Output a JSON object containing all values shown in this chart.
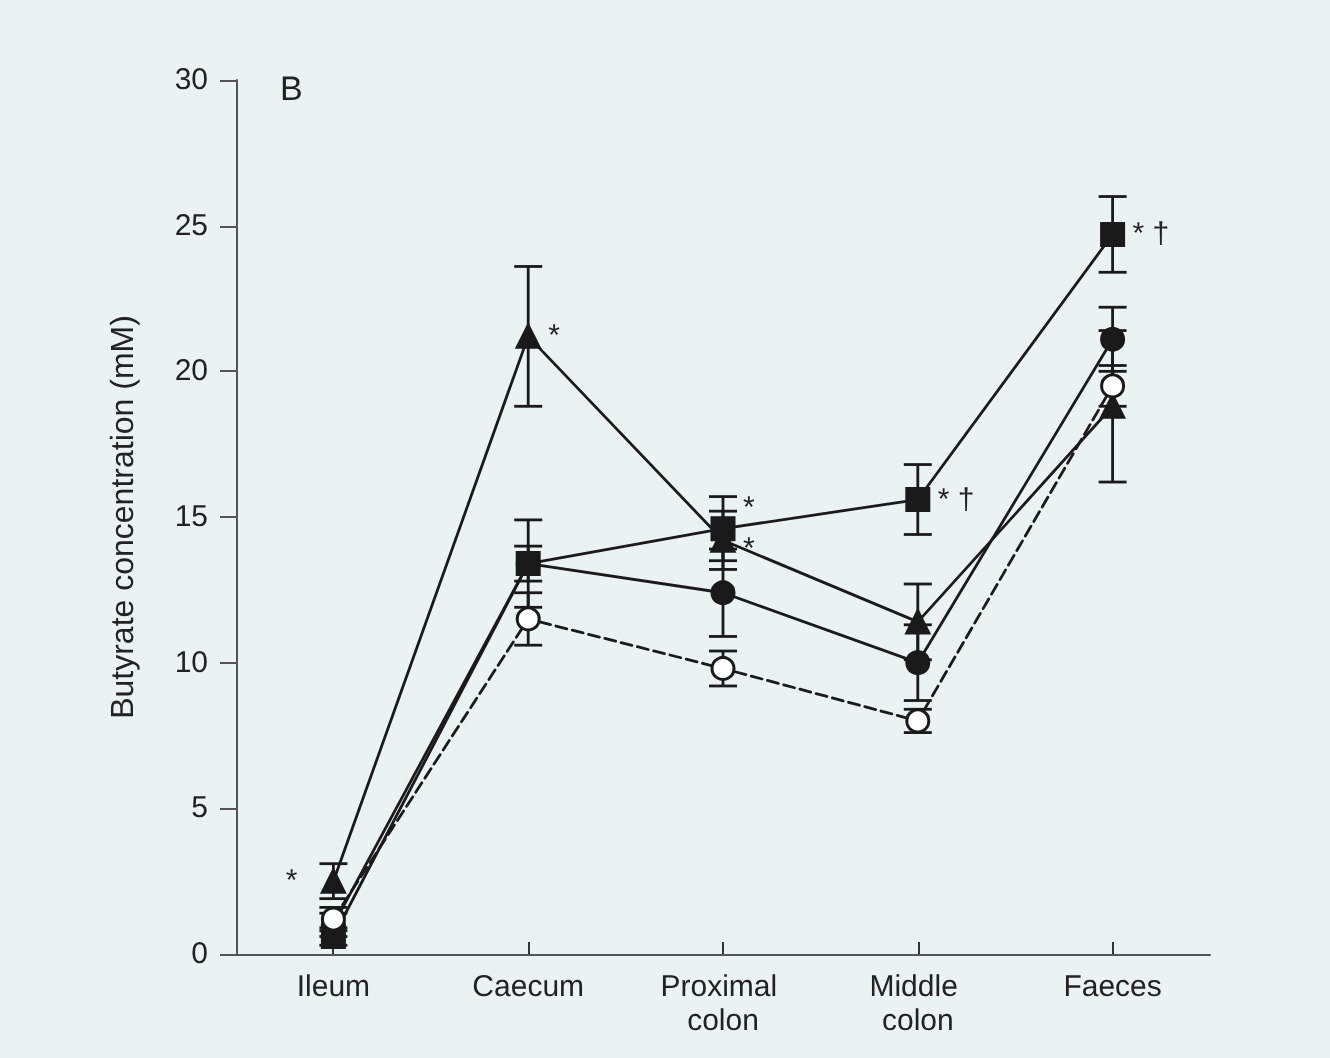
{
  "chart_data": {
    "type": "line",
    "ylabel": "Butyrate concentration (mM)",
    "categories": [
      "Ileum",
      "Caecum",
      "Proximal colon",
      "Middle colon",
      "Faeces"
    ],
    "series": [
      {
        "color": "#1a1a1a",
        "marker": "triangle",
        "line_style": "solid",
        "values": [
          2.5,
          21.2,
          14.2,
          11.4,
          18.8
        ],
        "errors": [
          0.6,
          2.4,
          1.0,
          1.3,
          2.6
        ]
      },
      {
        "color": "#1a1a1a",
        "marker": "square",
        "line_style": "solid",
        "values": [
          0.6,
          13.4,
          14.6,
          15.6,
          24.7
        ],
        "errors": [
          0.3,
          0.6,
          1.1,
          1.2,
          1.3
        ]
      },
      {
        "color": "#1a1a1a",
        "marker": "circle",
        "line_style": "solid",
        "values": [
          1.0,
          13.4,
          12.4,
          10.0,
          21.1
        ],
        "errors": [
          0.4,
          1.5,
          1.5,
          1.3,
          1.1
        ]
      },
      {
        "color": "#1a1a1a",
        "marker": "circle",
        "line_style": "dashed",
        "values": [
          1.2,
          11.5,
          9.8,
          8.0,
          19.5
        ],
        "errors": [
          0.4,
          0.9,
          0.6,
          0.4,
          0.7
        ]
      }
    ],
    "ylim": [
      0,
      30
    ],
    "yticks": [
      0,
      5,
      10,
      15,
      20,
      25,
      30
    ],
    "grid": false,
    "annotations": [
      "B",
      {
        "text": "*",
        "x": "Ileum",
        "y": 2.5
      },
      {
        "text": "*",
        "x": "Caecum",
        "y": 21.2
      },
      {
        "text": "*",
        "x": "Proximal colon",
        "y": 15.3
      },
      {
        "text": "*",
        "x": "Proximal colon",
        "y": 13.9
      },
      {
        "text": "* †",
        "x": "Middle colon",
        "y": 15.6
      },
      {
        "text": "* †",
        "x": "Faeces",
        "y": 24.7
      }
    ]
  }
}
